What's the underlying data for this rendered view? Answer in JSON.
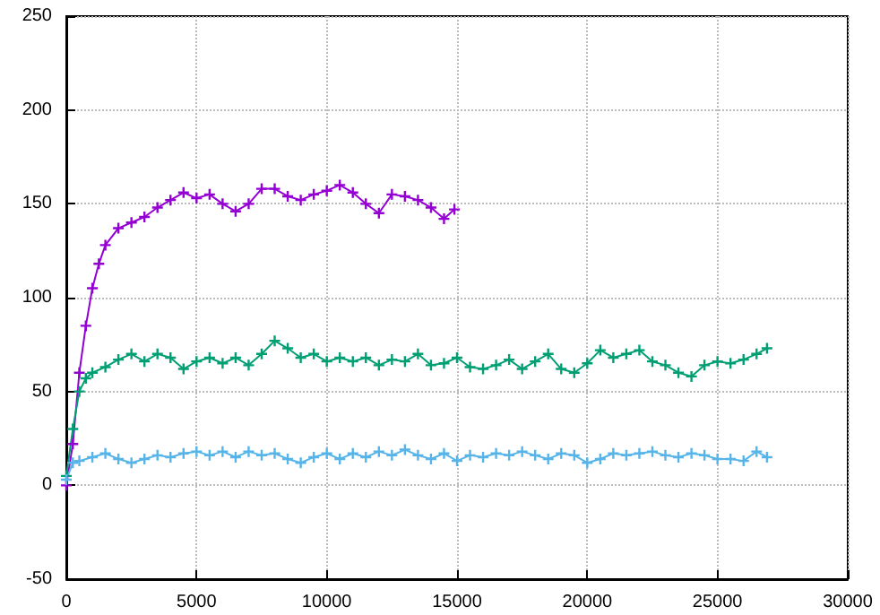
{
  "chart_data": {
    "type": "line",
    "marker": "cross",
    "line_style": "solid",
    "grid": true,
    "xlim": [
      0,
      30000
    ],
    "xticks": [
      0,
      5000,
      10000,
      15000,
      20000,
      25000,
      30000
    ],
    "ylim": [
      -50,
      250
    ],
    "yticks": [
      -50,
      0,
      50,
      100,
      150,
      200,
      250
    ],
    "series": [
      {
        "color": "#9400d3",
        "x": [
          0,
          250,
          500,
          750,
          1000,
          1250,
          1500,
          2000,
          2500,
          3000,
          3500,
          4000,
          4500,
          5000,
          5500,
          6000,
          6500,
          7000,
          7500,
          8000,
          8500,
          9000,
          9500,
          10000,
          10500,
          11000,
          11500,
          12000,
          12500,
          13000,
          13500,
          14000,
          14500,
          14900
        ],
        "values": [
          0,
          22,
          60,
          85,
          105,
          118,
          128,
          137,
          140,
          143,
          148,
          152,
          156,
          153,
          155,
          150,
          146,
          150,
          158,
          158,
          154,
          152,
          155,
          157,
          160,
          156,
          150,
          145,
          155,
          154,
          152,
          148,
          142,
          147
        ]
      },
      {
        "color": "#009e73",
        "x": [
          0,
          250,
          500,
          750,
          1000,
          1500,
          2000,
          2500,
          3000,
          3500,
          4000,
          4500,
          5000,
          5500,
          6000,
          6500,
          7000,
          7500,
          8000,
          8500,
          9000,
          9500,
          10000,
          10500,
          11000,
          11500,
          12000,
          12500,
          13000,
          13500,
          14000,
          14500,
          15000,
          15500,
          16000,
          16500,
          17000,
          17500,
          18000,
          18500,
          19000,
          19500,
          20000,
          20500,
          21000,
          21500,
          22000,
          22500,
          23000,
          23500,
          24000,
          24500,
          25000,
          25500,
          26000,
          26500,
          26900
        ],
        "values": [
          5,
          30,
          50,
          57,
          60,
          63,
          67,
          70,
          66,
          70,
          68,
          62,
          66,
          68,
          65,
          68,
          64,
          70,
          77,
          73,
          68,
          70,
          66,
          68,
          66,
          68,
          64,
          67,
          66,
          70,
          64,
          65,
          68,
          63,
          62,
          64,
          67,
          62,
          66,
          70,
          62,
          60,
          65,
          72,
          68,
          70,
          72,
          66,
          64,
          60,
          58,
          64,
          66,
          65,
          67,
          70,
          73
        ]
      },
      {
        "color": "#56b4e9",
        "x": [
          0,
          250,
          500,
          1000,
          1500,
          2000,
          2500,
          3000,
          3500,
          4000,
          4500,
          5000,
          5500,
          6000,
          6500,
          7000,
          7500,
          8000,
          8500,
          9000,
          9500,
          10000,
          10500,
          11000,
          11500,
          12000,
          12500,
          13000,
          13500,
          14000,
          14500,
          15000,
          15500,
          16000,
          16500,
          17000,
          17500,
          18000,
          18500,
          19000,
          19500,
          20000,
          20500,
          21000,
          21500,
          22000,
          22500,
          23000,
          23500,
          24000,
          24500,
          25000,
          25500,
          26000,
          26500,
          26900
        ],
        "values": [
          3,
          12,
          13,
          15,
          17,
          14,
          12,
          14,
          16,
          15,
          17,
          18,
          16,
          18,
          15,
          18,
          16,
          17,
          14,
          12,
          15,
          17,
          14,
          17,
          15,
          18,
          16,
          19,
          16,
          14,
          17,
          13,
          16,
          15,
          17,
          16,
          18,
          16,
          14,
          17,
          16,
          12,
          14,
          17,
          16,
          17,
          18,
          16,
          15,
          17,
          16,
          14,
          14,
          13,
          18,
          15
        ]
      }
    ]
  }
}
